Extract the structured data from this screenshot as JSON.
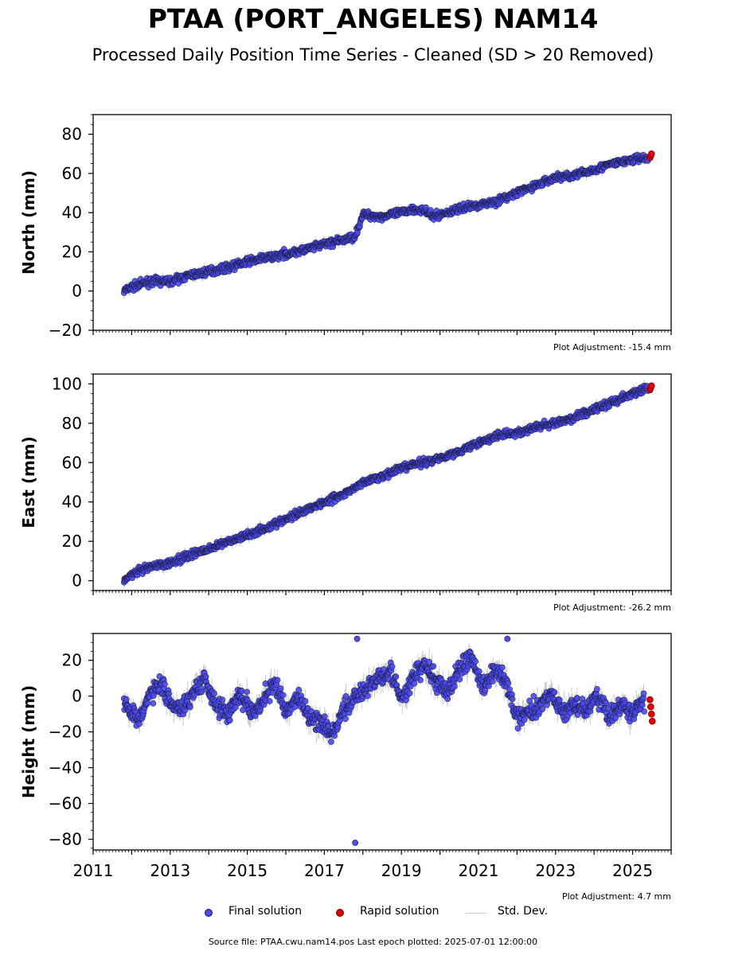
{
  "title": "PTAA (PORT_ANGELES) NAM14",
  "subtitle": "Processed Daily Position Time Series - Cleaned (SD > 20 Removed)",
  "source_note": "Source file: PTAA.cwu.nam14.pos  Last epoch plotted: 2025-07-01 12:00:00",
  "legend": {
    "final": "Final solution",
    "rapid": "Rapid solution",
    "std": "Std. Dev."
  },
  "colors": {
    "final": "#4a4af0",
    "final_edge": "#1a1a3a",
    "rapid": "#e00000",
    "std": "#bdbdbd"
  },
  "chart_data": [
    {
      "type": "scatter",
      "ylabel": "North (mm)",
      "ylim": [
        -20,
        90
      ],
      "yticks": [
        -20,
        0,
        20,
        40,
        60,
        80
      ],
      "xlim": [
        2011,
        2026
      ],
      "adjustment": "Plot Adjustment: -15.4 mm",
      "series": [
        {
          "name": "Final solution",
          "x": [
            2011.8,
            2012.0,
            2012.5,
            2013.0,
            2013.5,
            2014.0,
            2014.5,
            2015.0,
            2015.5,
            2016.0,
            2016.5,
            2017.0,
            2017.5,
            2017.8,
            2018.0,
            2018.5,
            2019.0,
            2019.3,
            2019.6,
            2019.8,
            2020.2,
            2020.5,
            2021.0,
            2021.5,
            2022.0,
            2022.5,
            2023.0,
            2023.5,
            2024.0,
            2024.5,
            2025.0,
            2025.4
          ],
          "y": [
            0,
            2,
            5,
            5,
            8,
            10,
            12,
            15,
            17,
            19,
            21,
            24,
            26,
            28,
            39,
            38,
            40,
            42,
            41,
            38,
            40,
            42,
            44,
            46,
            50,
            54,
            58,
            59,
            62,
            65,
            67,
            68
          ]
        },
        {
          "name": "Rapid solution",
          "x": [
            2025.45,
            2025.47,
            2025.49
          ],
          "y": [
            68,
            69,
            70
          ]
        }
      ]
    },
    {
      "type": "scatter",
      "ylabel": "East (mm)",
      "ylim": [
        -5,
        105
      ],
      "yticks": [
        0,
        20,
        40,
        60,
        80,
        100
      ],
      "xlim": [
        2011,
        2026
      ],
      "adjustment": "Plot Adjustment: -26.2 mm",
      "series": [
        {
          "name": "Final solution",
          "x": [
            2011.8,
            2012.0,
            2012.5,
            2013.0,
            2013.5,
            2014.0,
            2014.5,
            2015.0,
            2015.5,
            2016.0,
            2016.5,
            2017.0,
            2017.5,
            2018.0,
            2018.5,
            2019.0,
            2019.5,
            2020.0,
            2020.5,
            2021.0,
            2021.5,
            2022.0,
            2022.5,
            2023.0,
            2023.5,
            2024.0,
            2024.5,
            2025.0,
            2025.4
          ],
          "y": [
            0,
            3,
            7,
            9,
            13,
            16,
            20,
            23,
            27,
            31,
            36,
            40,
            44,
            50,
            53,
            57,
            60,
            62,
            66,
            70,
            74,
            75,
            78,
            80,
            83,
            87,
            91,
            95,
            98
          ]
        },
        {
          "name": "Rapid solution",
          "x": [
            2025.45,
            2025.47,
            2025.49
          ],
          "y": [
            97,
            98,
            99
          ]
        }
      ]
    },
    {
      "type": "scatter",
      "ylabel": "Height (mm)",
      "ylim": [
        -86,
        35
      ],
      "yticks": [
        -80,
        -60,
        -40,
        -20,
        0,
        20
      ],
      "xlim": [
        2011,
        2026
      ],
      "xticks": [
        2011,
        2013,
        2015,
        2017,
        2019,
        2021,
        2023,
        2025
      ],
      "adjustment": "Plot Adjustment: 4.7 mm",
      "series": [
        {
          "name": "Final solution",
          "x": [
            2011.8,
            2012.0,
            2012.2,
            2012.5,
            2012.8,
            2013.0,
            2013.3,
            2013.6,
            2013.9,
            2014.2,
            2014.5,
            2014.8,
            2015.1,
            2015.4,
            2015.7,
            2016.0,
            2016.3,
            2016.6,
            2016.9,
            2017.2,
            2017.5,
            2017.8,
            2018.1,
            2018.4,
            2018.7,
            2019.0,
            2019.3,
            2019.6,
            2019.9,
            2020.2,
            2020.5,
            2020.8,
            2021.1,
            2021.4,
            2021.7,
            2022.0,
            2022.3,
            2022.6,
            2022.9,
            2023.2,
            2023.5,
            2023.8,
            2024.1,
            2024.4,
            2024.7,
            2025.0,
            2025.3
          ],
          "y": [
            -5,
            -10,
            -12,
            2,
            8,
            -5,
            -8,
            3,
            10,
            -5,
            -10,
            2,
            -8,
            -3,
            8,
            -10,
            0,
            -12,
            -15,
            -22,
            -8,
            0,
            5,
            10,
            15,
            -2,
            10,
            18,
            8,
            2,
            15,
            22,
            5,
            15,
            8,
            -12,
            -8,
            -5,
            2,
            -10,
            -5,
            -8,
            0,
            -12,
            -5,
            -10,
            -3
          ]
        },
        {
          "name": "Rapid solution",
          "x": [
            2025.45,
            2025.47,
            2025.49,
            2025.51
          ],
          "y": [
            -2,
            -6,
            -10,
            -14
          ]
        }
      ],
      "outliers": [
        {
          "x": 2017.8,
          "y": -82
        },
        {
          "x": 2017.85,
          "y": 32
        },
        {
          "x": 2021.75,
          "y": 32
        }
      ]
    }
  ]
}
